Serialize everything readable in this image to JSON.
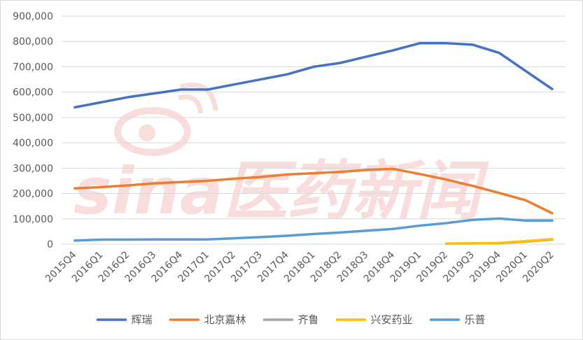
{
  "chart_data": {
    "type": "line",
    "title": "",
    "xlabel": "",
    "ylabel": "",
    "categories": [
      "2015Q4",
      "2016Q1",
      "2016Q2",
      "2016Q3",
      "2016Q4",
      "2017Q1",
      "2017Q2",
      "2017Q3",
      "2017Q4",
      "2018Q1",
      "2018Q2",
      "2018Q3",
      "2018Q4",
      "2019Q1",
      "2019Q2",
      "2019Q3",
      "2019Q4",
      "2020Q1",
      "2020Q2"
    ],
    "ylim": [
      0,
      900000
    ],
    "yticks": [
      0,
      100000,
      200000,
      300000,
      400000,
      500000,
      600000,
      700000,
      800000,
      900000
    ],
    "ytick_labels": [
      "0",
      "100,000",
      "200,000",
      "300,000",
      "400,000",
      "500,000",
      "600,000",
      "700,000",
      "800,000",
      "900,000"
    ],
    "grid": "horizontal",
    "legend_position": "bottom",
    "series": [
      {
        "name": "辉瑞",
        "color": "#4472c4",
        "values": [
          540000,
          560000,
          580000,
          595000,
          610000,
          610000,
          630000,
          650000,
          670000,
          700000,
          715000,
          740000,
          765000,
          793000,
          793000,
          787000,
          755000,
          683000,
          612000
        ]
      },
      {
        "name": "北京嘉林",
        "color": "#ed7d31",
        "values": [
          220000,
          225000,
          232000,
          240000,
          245000,
          250000,
          258000,
          265000,
          275000,
          280000,
          285000,
          293000,
          297000,
          277000,
          255000,
          230000,
          202000,
          173000,
          122000
        ]
      },
      {
        "name": "齐鲁",
        "color": "#a5a5a5",
        "values": [
          null,
          null,
          null,
          null,
          null,
          null,
          null,
          null,
          null,
          null,
          null,
          null,
          null,
          null,
          2000,
          3000,
          4000,
          10000,
          18000
        ]
      },
      {
        "name": "兴安药业",
        "color": "#ffc000",
        "values": [
          null,
          null,
          null,
          null,
          null,
          null,
          null,
          null,
          null,
          null,
          null,
          null,
          null,
          null,
          2000,
          3000,
          4000,
          12000,
          20000
        ]
      },
      {
        "name": "乐普",
        "color": "#5b9bd5",
        "values": [
          14000,
          18000,
          18000,
          18500,
          18500,
          18500,
          23000,
          28000,
          33000,
          40000,
          46000,
          53000,
          60000,
          73000,
          83000,
          96000,
          101000,
          93000,
          93000
        ]
      }
    ]
  },
  "watermark": {
    "text": "sina医药新闻"
  }
}
